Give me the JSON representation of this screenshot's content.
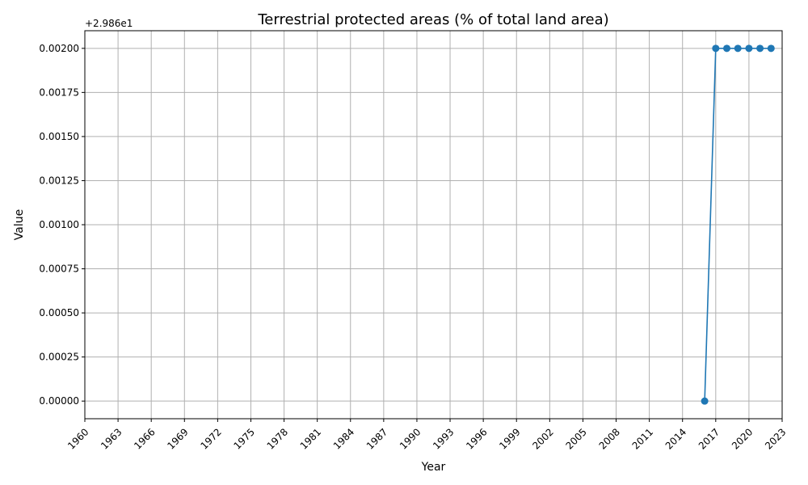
{
  "chart_data": {
    "type": "line",
    "title": "Terrestrial protected areas (% of total land area)",
    "xlabel": "Year",
    "ylabel": "Value",
    "y_offset_label": "+2.986e1",
    "xlim": [
      1960,
      2023
    ],
    "ylim": [
      -0.0001,
      0.0021
    ],
    "x_ticks": [
      1960,
      1963,
      1966,
      1969,
      1972,
      1975,
      1978,
      1981,
      1984,
      1987,
      1990,
      1993,
      1996,
      1999,
      2002,
      2005,
      2008,
      2011,
      2014,
      2017,
      2020,
      2023
    ],
    "y_ticks": [
      0,
      0.00025,
      0.0005,
      0.00075,
      0.001,
      0.00125,
      0.0015,
      0.00175,
      0.002
    ],
    "y_tick_labels": [
      "0.00000",
      "0.00025",
      "0.00050",
      "0.00075",
      "0.00100",
      "0.00125",
      "0.00150",
      "0.00175",
      "0.00200"
    ],
    "grid": true,
    "line_color": "#1f77b4",
    "series": [
      {
        "x": [
          2016,
          2017,
          2018,
          2019,
          2020,
          2021,
          2022
        ],
        "values": [
          0.0,
          0.002,
          0.002,
          0.002,
          0.002,
          0.002,
          0.002
        ]
      }
    ]
  }
}
